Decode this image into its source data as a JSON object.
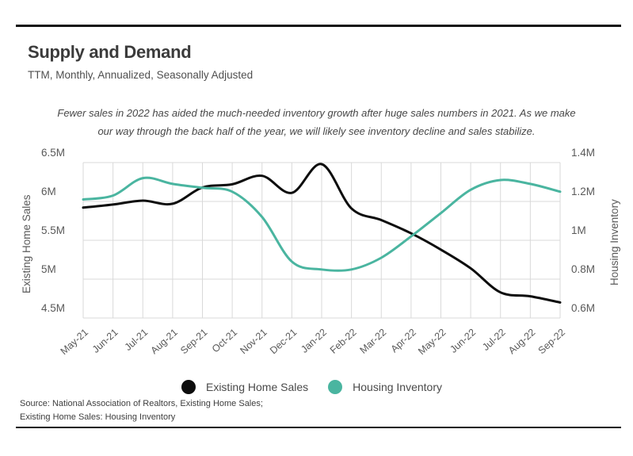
{
  "header": {
    "title": "Supply and Demand",
    "subtitle": "TTM, Monthly, Annualized, Seasonally Adjusted"
  },
  "annotation": {
    "line1": "Fewer sales in 2022 has aided the much-needed inventory growth after huge sales numbers in 2021. As we make",
    "line2": "our way through the back half of the year, we will likely see inventory decline and sales stabilize."
  },
  "chart_data": {
    "type": "line",
    "title": "Supply and Demand",
    "categories": [
      "May-21",
      "Jun-21",
      "Jul-21",
      "Aug-21",
      "Sep-21",
      "Oct-21",
      "Nov-21",
      "Dec-21",
      "Jan-22",
      "Feb-22",
      "Mar-22",
      "Apr-22",
      "May-22",
      "Jun-22",
      "Jul-22",
      "Aug-22",
      "Sep-22"
    ],
    "series": [
      {
        "name": "Existing Home Sales",
        "axis": "left",
        "color": "#0d0d0d",
        "values": [
          5.92,
          5.96,
          6.01,
          5.97,
          6.18,
          6.22,
          6.33,
          6.11,
          6.48,
          5.91,
          5.76,
          5.59,
          5.38,
          5.14,
          4.83,
          4.78,
          4.7
        ]
      },
      {
        "name": "Housing Inventory",
        "axis": "right",
        "color": "#4ab5a0",
        "values": [
          1.21,
          1.23,
          1.32,
          1.29,
          1.27,
          1.25,
          1.12,
          0.89,
          0.85,
          0.85,
          0.91,
          1.02,
          1.14,
          1.26,
          1.31,
          1.29,
          1.25
        ]
      }
    ],
    "left_axis": {
      "label": "Existing Home Sales",
      "tick_labels": [
        "6.5M",
        "6M",
        "5.5M",
        "5M",
        "4.5M"
      ],
      "tick_values": [
        6.5,
        6.0,
        5.5,
        5.0,
        4.5
      ],
      "min": 4.5,
      "max": 6.5
    },
    "right_axis": {
      "label": "Housing Inventory",
      "tick_labels": [
        "1.4M",
        "1.2M",
        "1M",
        "0.8M",
        "0.6M"
      ],
      "tick_values": [
        1.4,
        1.2,
        1.0,
        0.8,
        0.6
      ],
      "min": 0.6,
      "max": 1.4
    },
    "grid": true,
    "legend_position": "bottom"
  },
  "source": {
    "line1": "Source:  National Association of Realtors, Existing Home Sales;",
    "line2": "Existing Home Sales: Housing Inventory"
  },
  "colors": {
    "line_black": "#0d0d0d",
    "accent_teal": "#4ab5a0",
    "grid": "#d9d9d9",
    "rule": "#121212",
    "tick_text": "#595959"
  }
}
